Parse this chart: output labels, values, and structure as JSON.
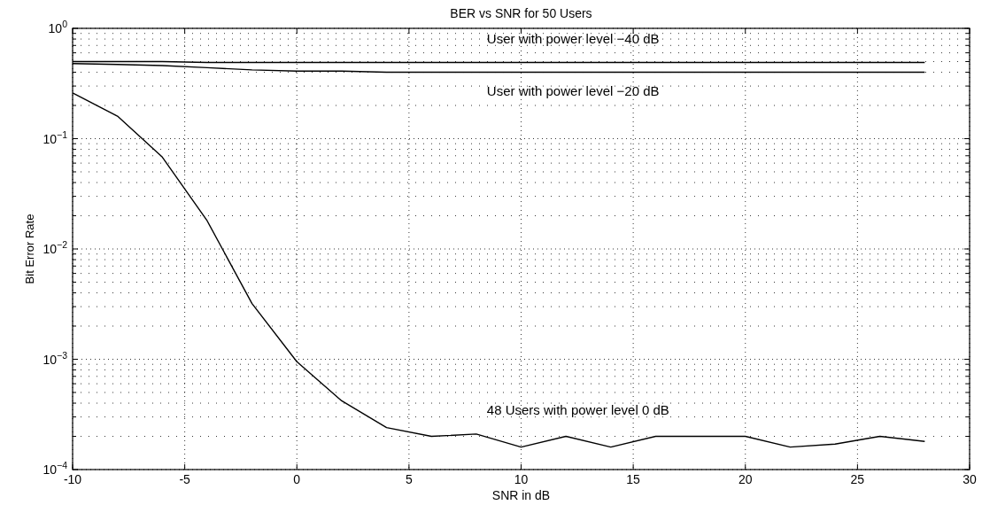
{
  "chart_data": {
    "type": "line",
    "title": "BER vs SNR for 50 Users",
    "xlabel": "SNR in dB",
    "ylabel": "Bit Error Rate",
    "log": "y",
    "grid": true,
    "line_style": "solid",
    "marker": "none",
    "x": [
      -10,
      -8,
      -6,
      -4,
      -2,
      0,
      2,
      4,
      6,
      8,
      10,
      12,
      14,
      16,
      18,
      20,
      22,
      24,
      26,
      28
    ],
    "xlim": [
      -10,
      30
    ],
    "xticks": [
      -10,
      -5,
      0,
      5,
      10,
      15,
      20,
      25,
      30
    ],
    "ylim": [
      0.0001,
      1
    ],
    "yticks": [
      {
        "value": 0.0001,
        "label": "10$^{−4}$"
      },
      {
        "value": 0.001,
        "label": "10$^{−3}$"
      },
      {
        "value": 0.01,
        "label": "10$^{−2}$"
      },
      {
        "value": 0.1,
        "label": "10$^{−1}$"
      },
      {
        "value": 1,
        "label": "10$^{0}$"
      }
    ],
    "series": [
      {
        "color": "#000000",
        "values": [
          0.5,
          0.5,
          0.5,
          0.49,
          0.49,
          0.49,
          0.49,
          0.49,
          0.49,
          0.49,
          0.49,
          0.49,
          0.49,
          0.49,
          0.49,
          0.49,
          0.49,
          0.49,
          0.49,
          0.49
        ]
      },
      {
        "color": "#000000",
        "values": [
          0.48,
          0.47,
          0.46,
          0.44,
          0.42,
          0.41,
          0.41,
          0.4,
          0.4,
          0.4,
          0.4,
          0.4,
          0.4,
          0.4,
          0.4,
          0.4,
          0.4,
          0.4,
          0.4,
          0.4
        ]
      },
      {
        "color": "#000000",
        "values": [
          0.26,
          0.16,
          0.068,
          0.018,
          0.0032,
          0.00095,
          0.00042,
          0.00024,
          0.0002,
          0.00021,
          0.00016,
          0.0002,
          0.00016,
          0.0002,
          0.0002,
          0.0002,
          0.00016,
          0.00017,
          0.0002,
          0.00018
        ]
      }
    ],
    "annotations": [
      "User with power level −40 dB",
      "User with power level −20 dB",
      "48 Users with power level 0 dB"
    ]
  }
}
